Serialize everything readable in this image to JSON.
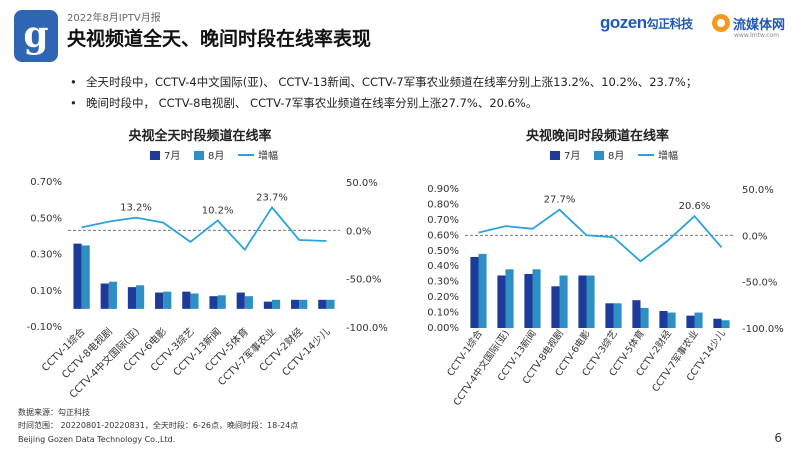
{
  "header": {
    "logo_letter": "g",
    "report_tag": "2022年8月IPTV月报",
    "title": "央视频道全天、晚间时段在线率表现",
    "brand_gozen": "gozen",
    "brand_gozen_cn": "勾正科技",
    "brand_lmt_name": "流媒体网",
    "brand_lmt_url": "www.lmtw.com"
  },
  "bullets": [
    "全天时段中，CCTV-4中文国际(亚)、 CCTV-13新闻、CCTV-7军事农业频道在线率分别上涨13.2%、10.2%、23.7%；",
    "晚间时段中， CCTV-8电视剧、 CCTV-7军事农业频道在线率分别上涨27.7%、20.6%。"
  ],
  "bullet_marker": "•",
  "colors": {
    "july": "#1f3b99",
    "august": "#2e8fc4",
    "growth": "#2aa3dc",
    "zero_line": "#666666",
    "axis_text": "#333333"
  },
  "chart_data": [
    {
      "type": "bar",
      "title": "央视全天时段频道在线率",
      "categories": [
        "CCTV-1综合",
        "CCTV-8电视剧",
        "CCTV-4中文国际(亚)",
        "CCTV-6电影",
        "CCTV-3综艺",
        "CCTV-13新闻",
        "CCTV-5体育",
        "CCTV-7军事农业",
        "CCTV-2财经",
        "CCTV-14少儿"
      ],
      "legend": [
        "7月",
        "8月",
        "增幅"
      ],
      "series": [
        {
          "name": "7月",
          "values": [
            0.0036,
            0.0014,
            0.0012,
            0.0009,
            0.00095,
            0.0007,
            0.0009,
            0.0004,
            0.0005,
            0.0005
          ]
        },
        {
          "name": "8月",
          "values": [
            0.0035,
            0.0015,
            0.0013,
            0.00095,
            0.00085,
            0.00075,
            0.0007,
            0.0005,
            0.0005,
            0.0005
          ]
        },
        {
          "name": "增幅",
          "axis": "right",
          "values": [
            0.03,
            0.09,
            0.132,
            0.08,
            -0.12,
            0.102,
            -0.2,
            0.237,
            -0.1,
            -0.11
          ]
        }
      ],
      "left_axis": {
        "ticks": [
          "0.70%",
          "0.50%",
          "0.30%",
          "0.10%",
          "-0.10%"
        ],
        "min": -0.001,
        "max": 0.007
      },
      "right_axis": {
        "ticks": [
          "50.0%",
          "0.0%",
          "-50.0%",
          "-100.0%"
        ],
        "min": -1.0,
        "max": 0.5
      },
      "annotations": [
        {
          "index": 2,
          "text": "13.2%"
        },
        {
          "index": 5,
          "text": "10.2%"
        },
        {
          "index": 7,
          "text": "23.7%"
        }
      ],
      "zero_line": "dashed"
    },
    {
      "type": "bar",
      "title": "央视晚间时段频道在线率",
      "categories": [
        "CCTV-1综合",
        "CCTV-4中文国际(亚)",
        "CCTV-13新闻",
        "CCTV-8电视剧",
        "CCTV-6电影",
        "CCTV-3综艺",
        "CCTV-5体育",
        "CCTV-2财经",
        "CCTV-7军事农业",
        "CCTV-14少儿"
      ],
      "legend": [
        "7月",
        "8月",
        "增幅"
      ],
      "series": [
        {
          "name": "7月",
          "values": [
            0.0046,
            0.0034,
            0.0035,
            0.0027,
            0.0034,
            0.0016,
            0.0018,
            0.0011,
            0.0008,
            0.0006
          ]
        },
        {
          "name": "8月",
          "values": [
            0.0048,
            0.0038,
            0.0038,
            0.0034,
            0.0034,
            0.0016,
            0.0013,
            0.001,
            0.001,
            0.0005
          ]
        },
        {
          "name": "增幅",
          "axis": "right",
          "values": [
            0.03,
            0.1,
            0.07,
            0.277,
            0.0,
            -0.02,
            -0.28,
            -0.06,
            0.206,
            -0.13
          ]
        }
      ],
      "left_axis": {
        "ticks": [
          "0.90%",
          "0.80%",
          "0.70%",
          "0.60%",
          "0.50%",
          "0.40%",
          "0.30%",
          "0.20%",
          "0.10%",
          "0.00%"
        ],
        "min": 0.0,
        "max": 0.009
      },
      "right_axis": {
        "ticks": [
          "50.0%",
          "0.0%",
          "-50.0%",
          "-100.0%"
        ],
        "min": -1.0,
        "max": 0.5
      },
      "annotations": [
        {
          "index": 3,
          "text": "27.7%"
        },
        {
          "index": 8,
          "text": "20.6%"
        }
      ],
      "zero_line": "dashed"
    }
  ],
  "footer": {
    "source": "数据来源：勾正科技",
    "time_range": "时间范围： 20220801-20220831，全天时段：6-26点，晚间时段：18-24点",
    "company": "Beijing Gozen Data Technology Co.,Ltd.",
    "page_number": "6"
  }
}
